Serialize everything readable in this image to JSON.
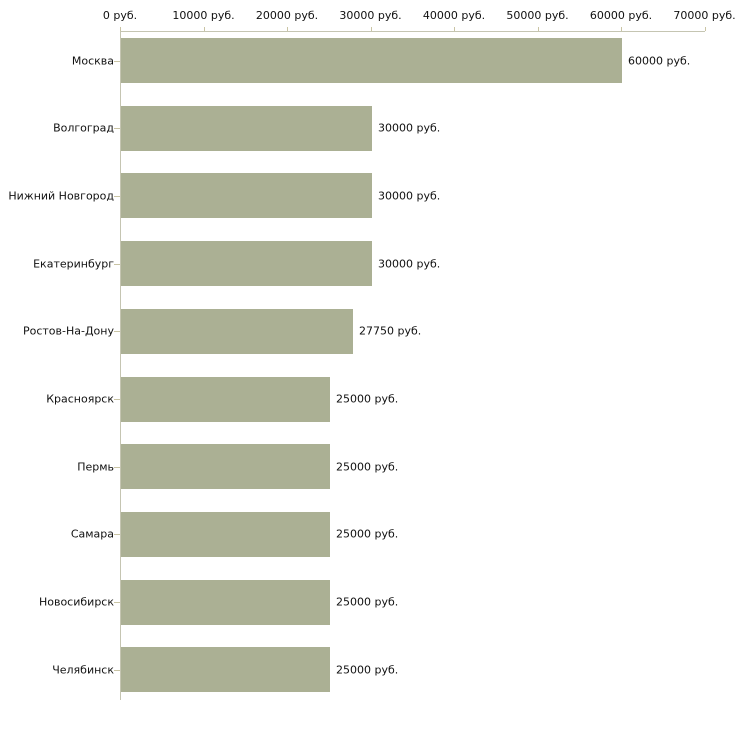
{
  "chart_data": {
    "type": "bar",
    "orientation": "horizontal",
    "title": "",
    "xlabel": "",
    "ylabel": "",
    "unit": "руб.",
    "categories": [
      "Москва",
      "Волгоград",
      "Нижний Новгород",
      "Екатеринбург",
      "Ростов-На-Дону",
      "Красноярск",
      "Пермь",
      "Самара",
      "Новосибирск",
      "Челябинск"
    ],
    "values": [
      60000,
      30000,
      30000,
      30000,
      27750,
      25000,
      25000,
      25000,
      25000,
      25000
    ],
    "value_labels": [
      "60000 руб.",
      "30000 руб.",
      "30000 руб.",
      "30000 руб.",
      "27750 руб.",
      "25000 руб.",
      "25000 руб.",
      "25000 руб.",
      "25000 руб.",
      "25000 руб."
    ],
    "xlim": [
      0,
      70000
    ],
    "x_ticks": [
      0,
      10000,
      20000,
      30000,
      40000,
      50000,
      60000,
      70000
    ],
    "x_tick_labels": [
      "0 руб.",
      "10000 руб.",
      "20000 руб.",
      "30000 руб.",
      "40000 руб.",
      "50000 руб.",
      "60000 руб.",
      "70000 руб."
    ],
    "grid": false,
    "legend_position": "none",
    "colors": {
      "bar": "#abb094",
      "axis": "#c5c5b2",
      "tick": "#c9c4a4",
      "text": "#111111",
      "background": "#ffffff"
    }
  }
}
